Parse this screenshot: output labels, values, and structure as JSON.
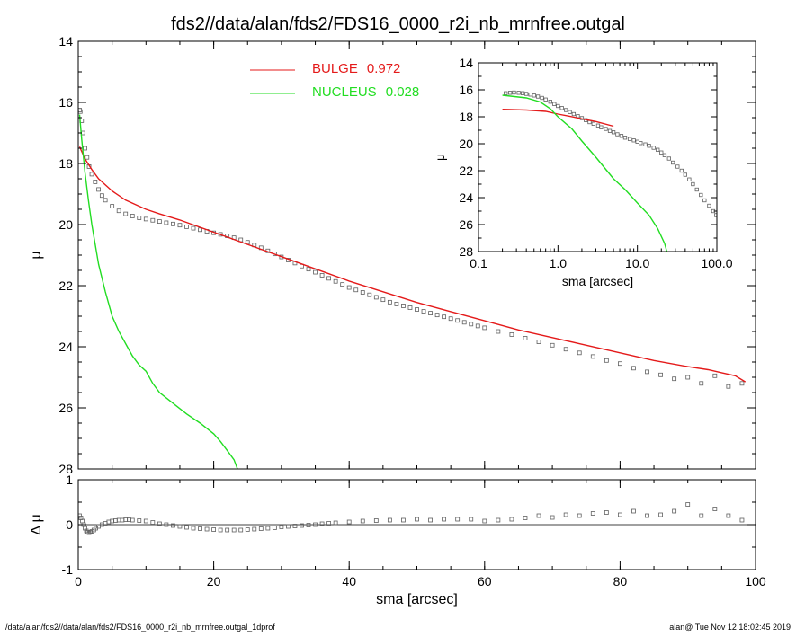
{
  "title": "fds2//data/alan/fds2/FDS16_0000_r2i_nb_mrnfree.outgal",
  "footer_left": "/data/alan/fds2//data/alan/fds2/FDS16_0000_r2i_nb_mrnfree.outgal_1dprof",
  "footer_right": "alan@  Tue Nov 12 18:02:45 2019",
  "colors": {
    "data": "#606060",
    "bulge": "#e41a1a",
    "nucleus": "#22dd22",
    "axis": "#000000"
  },
  "chart_data": [
    {
      "id": "main",
      "type": "line",
      "xlabel": "",
      "ylabel": "μ",
      "xlim": [
        0,
        100
      ],
      "ylim": [
        28,
        14
      ],
      "yreversed": true,
      "xticks": [
        0,
        20,
        40,
        60,
        80,
        100
      ],
      "yticks": [
        14,
        16,
        18,
        20,
        22,
        24,
        26,
        28
      ],
      "legend": {
        "placement": "top-center",
        "entries": [
          {
            "name": "BULGE",
            "value": "0.972",
            "color": "#e41a1a"
          },
          {
            "name": "NUCLEUS",
            "value": "0.028",
            "color": "#22dd22"
          }
        ]
      },
      "series": [
        {
          "name": "BULGE",
          "kind": "line",
          "color": "#e41a1a",
          "x": [
            0.2,
            1,
            2,
            3,
            5,
            7,
            10,
            12,
            15,
            20,
            25,
            30,
            35,
            40,
            45,
            50,
            55,
            60,
            65,
            70,
            75,
            80,
            85,
            90,
            93,
            95,
            97,
            98.5
          ],
          "y": [
            17.45,
            17.85,
            18.2,
            18.5,
            18.9,
            19.2,
            19.5,
            19.65,
            19.85,
            20.25,
            20.65,
            21.05,
            21.45,
            21.85,
            22.2,
            22.55,
            22.85,
            23.15,
            23.45,
            23.7,
            23.95,
            24.2,
            24.45,
            24.65,
            24.75,
            24.85,
            24.95,
            25.15
          ]
        },
        {
          "name": "NUCLEUS",
          "kind": "line",
          "color": "#22dd22",
          "x": [
            0.2,
            0.5,
            1,
            1.5,
            2,
            3,
            4,
            5,
            6,
            7,
            8,
            9,
            10,
            11,
            12,
            14,
            16,
            18,
            20,
            21,
            22,
            23,
            23.5
          ],
          "y": [
            16.4,
            17.2,
            18.3,
            19.2,
            20.0,
            21.3,
            22.2,
            23.0,
            23.5,
            23.9,
            24.3,
            24.6,
            24.8,
            25.2,
            25.5,
            25.85,
            26.2,
            26.5,
            26.85,
            27.1,
            27.4,
            27.7,
            28.0
          ]
        },
        {
          "name": "",
          "kind": "points",
          "color": "#606060",
          "x": [
            0.2,
            0.3,
            0.5,
            0.7,
            1.0,
            1.3,
            1.6,
            2.0,
            2.5,
            3.0,
            3.5,
            4.0,
            5,
            6,
            7,
            8,
            9,
            10,
            11,
            12,
            13,
            14,
            15,
            16,
            17,
            18,
            19,
            20,
            21,
            22,
            23,
            24,
            25,
            26,
            27,
            28,
            29,
            30,
            31,
            32,
            33,
            34,
            35,
            36,
            37,
            38,
            39,
            40,
            41,
            42,
            43,
            44,
            45,
            46,
            47,
            48,
            49,
            50,
            51,
            52,
            53,
            54,
            55,
            56,
            57,
            58,
            59,
            60,
            62,
            64,
            66,
            68,
            70,
            72,
            74,
            76,
            78,
            80,
            82,
            84,
            86,
            88,
            90,
            92,
            94,
            96,
            98
          ],
          "y": [
            16.25,
            16.3,
            16.6,
            17.0,
            17.5,
            17.8,
            18.1,
            18.35,
            18.6,
            18.85,
            19.05,
            19.2,
            19.4,
            19.55,
            19.65,
            19.72,
            19.78,
            19.82,
            19.86,
            19.9,
            19.94,
            19.98,
            20.02,
            20.07,
            20.12,
            20.17,
            20.22,
            20.27,
            20.32,
            20.37,
            20.43,
            20.5,
            20.58,
            20.67,
            20.76,
            20.86,
            20.96,
            21.06,
            21.16,
            21.26,
            21.36,
            21.46,
            21.56,
            21.66,
            21.76,
            21.86,
            21.96,
            22.06,
            22.14,
            22.22,
            22.3,
            22.38,
            22.46,
            22.54,
            22.6,
            22.66,
            22.72,
            22.78,
            22.84,
            22.9,
            22.96,
            23.02,
            23.08,
            23.14,
            23.2,
            23.26,
            23.32,
            23.38,
            23.5,
            23.6,
            23.72,
            23.84,
            23.95,
            24.08,
            24.2,
            24.32,
            24.45,
            24.55,
            24.7,
            24.82,
            24.92,
            25.05,
            25.0,
            25.2,
            24.95,
            25.3,
            25.2
          ]
        }
      ]
    },
    {
      "id": "residual",
      "type": "scatter",
      "xlabel": "sma [arcsec]",
      "ylabel": "Δ μ",
      "xlim": [
        0,
        100
      ],
      "ylim": [
        -1,
        1
      ],
      "xticks": [
        0,
        20,
        40,
        60,
        80,
        100
      ],
      "yticks": [
        -1,
        0,
        1
      ],
      "reference_line": 0,
      "series": [
        {
          "name": "",
          "kind": "points",
          "color": "#606060",
          "x": [
            0.2,
            0.4,
            0.6,
            0.8,
            1.0,
            1.2,
            1.4,
            1.6,
            1.8,
            2.0,
            2.3,
            2.6,
            3.0,
            3.5,
            4.0,
            4.5,
            5.0,
            5.5,
            6.0,
            6.5,
            7.0,
            7.5,
            8,
            9,
            10,
            11,
            12,
            13,
            14,
            15,
            16,
            17,
            18,
            19,
            20,
            21,
            22,
            23,
            24,
            25,
            26,
            27,
            28,
            29,
            30,
            31,
            32,
            33,
            34,
            35,
            36,
            37,
            38,
            40,
            42,
            44,
            46,
            48,
            50,
            52,
            54,
            56,
            58,
            60,
            62,
            64,
            66,
            68,
            70,
            72,
            74,
            76,
            78,
            80,
            82,
            84,
            86,
            88,
            90,
            92,
            94,
            96,
            98
          ],
          "y": [
            0.2,
            0.15,
            0.08,
            0.0,
            -0.08,
            -0.14,
            -0.17,
            -0.18,
            -0.17,
            -0.15,
            -0.12,
            -0.08,
            -0.04,
            0.0,
            0.03,
            0.06,
            0.08,
            0.09,
            0.1,
            0.1,
            0.11,
            0.11,
            0.1,
            0.09,
            0.08,
            0.05,
            0.02,
            0.0,
            -0.02,
            -0.04,
            -0.06,
            -0.08,
            -0.09,
            -0.1,
            -0.11,
            -0.12,
            -0.12,
            -0.12,
            -0.12,
            -0.11,
            -0.1,
            -0.09,
            -0.08,
            -0.07,
            -0.05,
            -0.04,
            -0.03,
            -0.02,
            -0.01,
            0.0,
            0.02,
            0.03,
            0.04,
            0.06,
            0.08,
            0.09,
            0.1,
            0.1,
            0.12,
            0.1,
            0.12,
            0.12,
            0.12,
            0.08,
            0.1,
            0.12,
            0.15,
            0.2,
            0.16,
            0.22,
            0.2,
            0.25,
            0.27,
            0.22,
            0.3,
            0.2,
            0.22,
            0.3,
            0.45,
            0.2,
            0.35,
            0.2,
            0.1
          ]
        }
      ]
    },
    {
      "id": "inset",
      "type": "line",
      "xlabel": "sma [arcsec]",
      "ylabel": "μ",
      "xscale": "log",
      "xlim": [
        0.1,
        100
      ],
      "ylim": [
        28,
        14
      ],
      "yreversed": true,
      "xticks": [
        0.1,
        1.0,
        10.0,
        100.0
      ],
      "xticklabels": [
        "0.1",
        "1.0",
        "10.0",
        "100.0"
      ],
      "yticks": [
        14,
        16,
        18,
        20,
        22,
        24,
        26,
        28
      ],
      "series": [
        {
          "name": "BULGE",
          "kind": "line",
          "color": "#e41a1a",
          "x": [
            0.2,
            0.4,
            0.7,
            1.0,
            1.5,
            2.0,
            3.0,
            5.0
          ],
          "y": [
            17.45,
            17.5,
            17.6,
            17.8,
            18.0,
            18.15,
            18.35,
            18.7
          ]
        },
        {
          "name": "NUCLEUS",
          "kind": "line",
          "color": "#22dd22",
          "x": [
            0.2,
            0.4,
            0.6,
            0.8,
            1.0,
            1.5,
            2.0,
            3.0,
            4.0,
            5.0,
            7.0,
            10.0,
            14.0,
            18.0,
            22.0,
            23.5
          ],
          "y": [
            16.4,
            16.6,
            16.9,
            17.4,
            18.0,
            18.9,
            19.8,
            21.0,
            21.9,
            22.6,
            23.4,
            24.4,
            25.3,
            26.3,
            27.4,
            28.0
          ]
        },
        {
          "name": "",
          "kind": "points",
          "color": "#606060",
          "x": [
            0.22,
            0.25,
            0.28,
            0.32,
            0.36,
            0.4,
            0.45,
            0.5,
            0.56,
            0.63,
            0.7,
            0.8,
            0.9,
            1.0,
            1.12,
            1.26,
            1.41,
            1.58,
            1.78,
            2.0,
            2.24,
            2.5,
            2.8,
            3.2,
            3.5,
            4.0,
            4.5,
            5.0,
            5.6,
            6.3,
            7.0,
            8.0,
            9.0,
            10,
            11,
            12.6,
            14,
            16,
            18,
            20,
            22,
            25,
            28,
            32,
            36,
            40,
            45,
            50,
            56,
            63,
            70,
            80,
            90,
            98
          ],
          "y": [
            16.25,
            16.22,
            16.2,
            16.22,
            16.25,
            16.3,
            16.35,
            16.42,
            16.5,
            16.6,
            16.72,
            16.88,
            17.05,
            17.2,
            17.35,
            17.5,
            17.65,
            17.8,
            17.95,
            18.1,
            18.25,
            18.4,
            18.52,
            18.65,
            18.78,
            18.9,
            19.05,
            19.15,
            19.3,
            19.42,
            19.55,
            19.65,
            19.75,
            19.85,
            19.95,
            20.05,
            20.15,
            20.3,
            20.45,
            20.65,
            20.85,
            21.1,
            21.4,
            21.7,
            22.0,
            22.3,
            22.65,
            23.0,
            23.4,
            23.8,
            24.2,
            24.6,
            25.0,
            25.3
          ]
        }
      ]
    }
  ]
}
